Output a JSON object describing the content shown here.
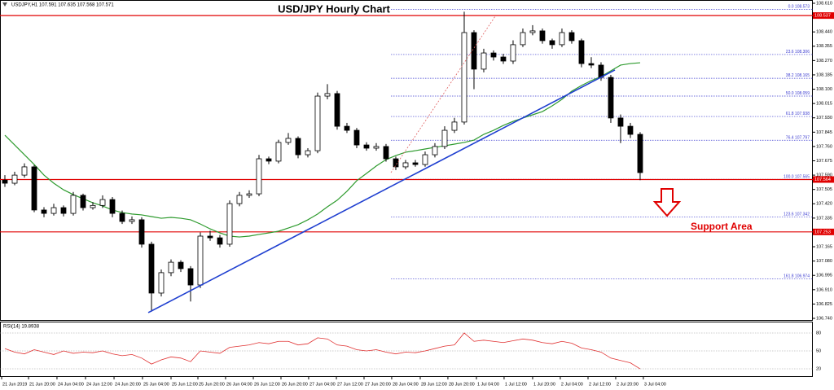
{
  "header": {
    "symbol_info": "USDJPY,H1 107.591 107.635 107.568 107.571"
  },
  "chart_data": [
    {
      "type": "candlestick",
      "title": "USD/JPY Hourly Chart",
      "annotation": "Support Area",
      "xlim": [
        -0.5,
        82.67
      ],
      "ylim": [
        106.74,
        108.61
      ],
      "yticks": [
        {
          "value": 108.61,
          "label": "108.610"
        },
        {
          "value": 108.525,
          "label": "108.525"
        },
        {
          "value": 108.44,
          "label": "108.440"
        },
        {
          "value": 108.355,
          "label": "108.355"
        },
        {
          "value": 108.27,
          "label": "108.270"
        },
        {
          "value": 108.185,
          "label": "108.185"
        },
        {
          "value": 108.1,
          "label": "108.100"
        },
        {
          "value": 108.015,
          "label": "108.015"
        },
        {
          "value": 107.93,
          "label": "107.930"
        },
        {
          "value": 107.845,
          "label": "107.845"
        },
        {
          "value": 107.76,
          "label": "107.760"
        },
        {
          "value": 107.675,
          "label": "107.675"
        },
        {
          "value": 107.59,
          "label": "107.590"
        },
        {
          "value": 107.505,
          "label": "107.505"
        },
        {
          "value": 107.42,
          "label": "107.420"
        },
        {
          "value": 107.335,
          "label": "107.335"
        },
        {
          "value": 107.25,
          "label": "107.250"
        },
        {
          "value": 107.165,
          "label": "107.165"
        },
        {
          "value": 107.08,
          "label": "107.080"
        },
        {
          "value": 106.995,
          "label": "106.995"
        },
        {
          "value": 106.91,
          "label": "106.910"
        },
        {
          "value": 106.825,
          "label": "106.825"
        },
        {
          "value": 106.74,
          "label": "106.740"
        }
      ],
      "xticks": [
        {
          "value": -0.33,
          "label": "21 Jun 2019"
        },
        {
          "value": 2.42,
          "label": "21 Jun 20:00"
        },
        {
          "value": 5.33,
          "label": "24 Jun 04:00"
        },
        {
          "value": 8.25,
          "label": "24 Jun 12:00"
        },
        {
          "value": 11.17,
          "label": "24 Jun 20:00"
        },
        {
          "value": 14.08,
          "label": "25 Jun 04:00"
        },
        {
          "value": 17,
          "label": "25 Jun 12:00"
        },
        {
          "value": 19.75,
          "label": "25 Jun 20:00"
        },
        {
          "value": 22.58,
          "label": "26 Jun 04:00"
        },
        {
          "value": 25.42,
          "label": "26 Jun 12:00"
        },
        {
          "value": 28.25,
          "label": "26 Jun 20:00"
        },
        {
          "value": 31.08,
          "label": "27 Jun 04:00"
        },
        {
          "value": 33.92,
          "label": "27 Jun 12:00"
        },
        {
          "value": 36.75,
          "label": "27 Jun 20:00"
        },
        {
          "value": 39.58,
          "label": "28 Jun 04:00"
        },
        {
          "value": 42.5,
          "label": "28 Jun 12:00"
        },
        {
          "value": 45.33,
          "label": "28 Jun 20:00"
        },
        {
          "value": 48.25,
          "label": "1 Jul 04:00"
        },
        {
          "value": 51.08,
          "label": "1 Jul 12:00"
        },
        {
          "value": 54,
          "label": "1 Jul 20:00"
        },
        {
          "value": 56.83,
          "label": "2 Jul 04:00"
        },
        {
          "value": 59.67,
          "label": "2 Jul 12:00"
        },
        {
          "value": 62.5,
          "label": "2 Jul 20:00"
        },
        {
          "value": 65.33,
          "label": "3 Jul 04:00"
        }
      ],
      "ohlc": [
        [
          107.56,
          107.59,
          107.52,
          107.542
        ],
        [
          107.542,
          107.61,
          107.53,
          107.59
        ],
        [
          107.59,
          107.66,
          107.575,
          107.639
        ],
        [
          107.639,
          107.65,
          107.37,
          107.383
        ],
        [
          107.383,
          107.4,
          107.34,
          107.363
        ],
        [
          107.363,
          107.42,
          107.35,
          107.397
        ],
        [
          107.397,
          107.41,
          107.345,
          107.363
        ],
        [
          107.363,
          107.49,
          107.35,
          107.47
        ],
        [
          107.47,
          107.48,
          107.38,
          107.397
        ],
        [
          107.397,
          107.43,
          107.385,
          107.41
        ],
        [
          107.41,
          107.47,
          107.395,
          107.445
        ],
        [
          107.445,
          107.46,
          107.34,
          107.363
        ],
        [
          107.363,
          107.38,
          107.3,
          107.315
        ],
        [
          107.315,
          107.345,
          107.3,
          107.325
        ],
        [
          107.325,
          107.34,
          107.16,
          107.18
        ],
        [
          107.18,
          107.195,
          106.78,
          106.89
        ],
        [
          106.89,
          107.03,
          106.87,
          107.011
        ],
        [
          107.011,
          107.09,
          106.99,
          107.073
        ],
        [
          107.073,
          107.085,
          107.015,
          107.035
        ],
        [
          107.035,
          107.05,
          106.84,
          106.938
        ],
        [
          106.938,
          107.25,
          106.92,
          107.228
        ],
        [
          107.228,
          107.26,
          107.2,
          107.218
        ],
        [
          107.218,
          107.235,
          107.16,
          107.18
        ],
        [
          107.18,
          107.44,
          107.165,
          107.421
        ],
        [
          107.421,
          107.49,
          107.405,
          107.47
        ],
        [
          107.47,
          107.5,
          107.455,
          107.479
        ],
        [
          107.479,
          107.71,
          107.465,
          107.687
        ],
        [
          107.687,
          107.7,
          107.655,
          107.673
        ],
        [
          107.673,
          107.8,
          107.66,
          107.784
        ],
        [
          107.784,
          107.84,
          107.77,
          107.808
        ],
        [
          107.808,
          107.82,
          107.69,
          107.711
        ],
        [
          107.711,
          107.75,
          107.695,
          107.735
        ],
        [
          107.735,
          108.08,
          107.72,
          108.059
        ],
        [
          108.059,
          108.13,
          108.04,
          108.074
        ],
        [
          108.074,
          108.09,
          107.86,
          107.88
        ],
        [
          107.88,
          107.9,
          107.84,
          107.856
        ],
        [
          107.856,
          107.87,
          107.75,
          107.769
        ],
        [
          107.769,
          107.785,
          107.735,
          107.75
        ],
        [
          107.75,
          107.78,
          107.735,
          107.76
        ],
        [
          107.76,
          107.775,
          107.67,
          107.687
        ],
        [
          107.687,
          107.7,
          107.62,
          107.639
        ],
        [
          107.639,
          107.68,
          107.625,
          107.663
        ],
        [
          107.663,
          107.68,
          107.64,
          107.653
        ],
        [
          107.653,
          107.73,
          107.64,
          107.711
        ],
        [
          107.711,
          107.78,
          107.695,
          107.76
        ],
        [
          107.76,
          107.88,
          107.745,
          107.856
        ],
        [
          107.856,
          107.93,
          107.84,
          107.905
        ],
        [
          107.905,
          108.56,
          107.89,
          108.436
        ],
        [
          108.436,
          108.45,
          108.1,
          108.219
        ],
        [
          108.219,
          108.34,
          108.2,
          108.315
        ],
        [
          108.315,
          108.33,
          108.27,
          108.291
        ],
        [
          108.291,
          108.31,
          108.25,
          108.267
        ],
        [
          108.267,
          108.39,
          108.25,
          108.364
        ],
        [
          108.364,
          108.46,
          108.35,
          108.436
        ],
        [
          108.436,
          108.48,
          108.42,
          108.446
        ],
        [
          108.446,
          108.46,
          108.37,
          108.388
        ],
        [
          108.388,
          108.4,
          108.34,
          108.364
        ],
        [
          108.364,
          108.46,
          108.35,
          108.436
        ],
        [
          108.436,
          108.45,
          108.37,
          108.388
        ],
        [
          108.388,
          108.4,
          108.23,
          108.252
        ],
        [
          108.252,
          108.29,
          108.225,
          108.243
        ],
        [
          108.243,
          108.26,
          108.15,
          108.17
        ],
        [
          108.17,
          108.185,
          107.9,
          107.929
        ],
        [
          107.929,
          107.95,
          107.78,
          107.88
        ],
        [
          107.88,
          107.9,
          107.81,
          107.832
        ],
        [
          107.832,
          107.845,
          107.56,
          107.605
        ]
      ],
      "moving_average": {
        "color": "#2e9b2e",
        "values": [
          107.827,
          107.769,
          107.711,
          107.653,
          107.59,
          107.542,
          107.503,
          107.474,
          107.45,
          107.426,
          107.407,
          107.383,
          107.368,
          107.359,
          107.354,
          107.344,
          107.334,
          107.339,
          107.334,
          107.325,
          107.3,
          107.271,
          107.247,
          107.228,
          107.223,
          107.228,
          107.238,
          107.247,
          107.257,
          107.276,
          107.296,
          107.325,
          107.359,
          107.402,
          107.441,
          107.494,
          107.557,
          107.6,
          107.644,
          107.682,
          107.706,
          107.726,
          107.735,
          107.745,
          107.755,
          107.764,
          107.774,
          107.784,
          107.798,
          107.832,
          107.856,
          107.885,
          107.909,
          107.929,
          107.948,
          107.967,
          108.001,
          108.04,
          108.088,
          108.122,
          108.151,
          108.175,
          108.209,
          108.243,
          108.252,
          108.257
        ]
      },
      "trendlines": [
        {
          "x": [
            14.67,
            62.42
          ],
          "y": [
            106.774,
            108.214
          ],
          "color": "#1f3fd0",
          "dash": false
        },
        {
          "x": [
            39.5,
            50.17
          ],
          "y": [
            107.605,
            108.533
          ],
          "color": "#e06060",
          "dash": true
        }
      ],
      "hlines": [
        {
          "value": 108.537,
          "color": "#e00000"
        },
        {
          "value": 107.564,
          "color": "#e00000"
        },
        {
          "value": 107.253,
          "color": "#e00000"
        }
      ],
      "fib_levels": {
        "color": "#3a3ad0",
        "levels": [
          {
            "level": "0.0",
            "value": 108.573
          },
          {
            "level": "23.6",
            "value": 108.306
          },
          {
            "level": "38.2",
            "value": 108.165
          },
          {
            "level": "50.0",
            "value": 108.059
          },
          {
            "level": "61.8",
            "value": 107.938
          },
          {
            "level": "76.4",
            "value": 107.797
          },
          {
            "level": "100.0",
            "value": 107.565
          },
          {
            "level": "123.6",
            "value": 107.342
          },
          {
            "level": "161.8",
            "value": 106.974
          }
        ]
      }
    },
    {
      "type": "line",
      "title": "RSI(14) 19.8938",
      "color": "#e03030",
      "xlim": [
        -0.5,
        82.67
      ],
      "ylim": [
        5,
        95
      ],
      "yticks": [
        20,
        50,
        80
      ],
      "values": [
        54,
        48,
        45,
        52,
        48,
        44,
        50,
        46,
        48,
        47,
        50,
        45,
        42,
        44,
        38,
        28,
        35,
        40,
        38,
        32,
        50,
        48,
        46,
        56,
        58,
        60,
        64,
        62,
        66,
        66,
        60,
        62,
        72,
        70,
        60,
        58,
        52,
        50,
        52,
        48,
        45,
        48,
        47,
        50,
        54,
        58,
        60,
        80,
        66,
        68,
        66,
        64,
        67,
        70,
        68,
        64,
        62,
        66,
        63,
        55,
        52,
        48,
        38,
        34,
        30,
        19.89
      ]
    }
  ]
}
